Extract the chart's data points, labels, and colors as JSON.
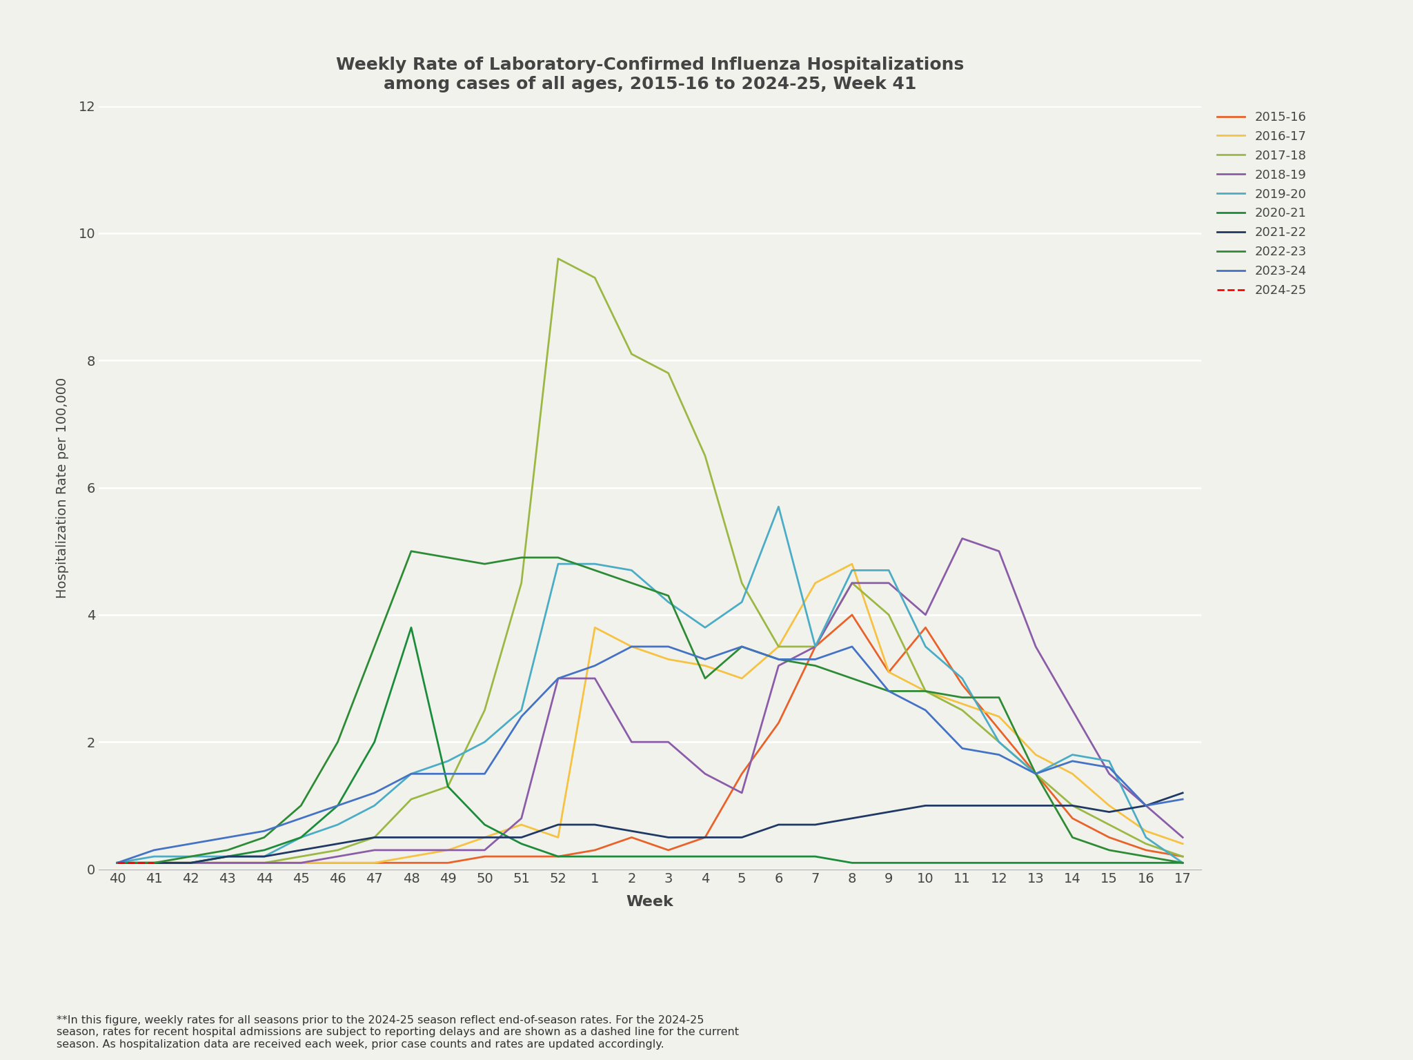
{
  "title_line1": "Weekly Rate of Laboratory-Confirmed Influenza Hospitalizations",
  "title_line2": "among cases of all ages, 2015-16 to 2024-25, Week 41",
  "ylabel": "Hospitalization Rate per 100,000",
  "xlabel": "Week",
  "footnote": "**In this figure, weekly rates for all seasons prior to the 2024-25 season reflect end-of-season rates. For the 2024-25\nseason, rates for recent hospital admissions are subject to reporting delays and are shown as a dashed line for the current\nseason. As hospitalization data are received each week, prior case counts and rates are updated accordingly.",
  "background_color": "#f2f2ec",
  "ylim": [
    0,
    12
  ],
  "yticks": [
    0,
    2,
    4,
    6,
    8,
    10,
    12
  ],
  "weeks": [
    "40",
    "41",
    "42",
    "43",
    "44",
    "45",
    "46",
    "47",
    "48",
    "49",
    "50",
    "51",
    "52",
    "1",
    "2",
    "3",
    "4",
    "5",
    "6",
    "7",
    "8",
    "9",
    "10",
    "11",
    "12",
    "13",
    "14",
    "15",
    "16",
    "17"
  ],
  "seasons": {
    "2015-16": {
      "color": "#E8622A",
      "dashed": false,
      "data": [
        0.1,
        0.1,
        0.1,
        0.1,
        0.1,
        0.1,
        0.1,
        0.1,
        0.1,
        0.1,
        0.2,
        0.2,
        0.2,
        0.3,
        0.5,
        0.3,
        0.5,
        1.5,
        2.3,
        3.5,
        4.0,
        3.1,
        3.8,
        2.9,
        2.2,
        1.5,
        0.8,
        0.5,
        0.3,
        0.2
      ]
    },
    "2016-17": {
      "color": "#F5C242",
      "dashed": false,
      "data": [
        0.1,
        0.1,
        0.1,
        0.1,
        0.1,
        0.1,
        0.1,
        0.1,
        0.2,
        0.3,
        0.5,
        0.7,
        0.5,
        3.8,
        3.5,
        3.3,
        3.2,
        3.0,
        3.5,
        4.5,
        4.8,
        3.1,
        2.8,
        2.6,
        2.4,
        1.8,
        1.5,
        1.0,
        0.6,
        0.4
      ]
    },
    "2017-18": {
      "color": "#9CB844",
      "dashed": false,
      "data": [
        0.1,
        0.1,
        0.1,
        0.1,
        0.1,
        0.2,
        0.3,
        0.5,
        1.1,
        1.3,
        2.5,
        4.5,
        9.6,
        9.3,
        8.1,
        7.8,
        6.5,
        4.5,
        3.5,
        3.5,
        4.5,
        4.0,
        2.8,
        2.5,
        2.0,
        1.5,
        1.0,
        0.7,
        0.4,
        0.2
      ]
    },
    "2018-19": {
      "color": "#8B5CA8",
      "dashed": false,
      "data": [
        0.1,
        0.1,
        0.1,
        0.1,
        0.1,
        0.1,
        0.2,
        0.3,
        0.3,
        0.3,
        0.3,
        0.8,
        3.0,
        3.0,
        2.0,
        2.0,
        1.5,
        1.2,
        3.2,
        3.5,
        4.5,
        4.5,
        4.0,
        5.2,
        5.0,
        3.5,
        2.5,
        1.5,
        1.0,
        0.5
      ]
    },
    "2019-20": {
      "color": "#4BACC6",
      "dashed": false,
      "data": [
        0.1,
        0.2,
        0.2,
        0.2,
        0.2,
        0.5,
        0.7,
        1.0,
        1.5,
        1.7,
        2.0,
        2.5,
        4.8,
        4.8,
        4.7,
        4.2,
        3.8,
        4.2,
        5.7,
        3.5,
        4.7,
        4.7,
        3.5,
        3.0,
        2.0,
        1.5,
        1.8,
        1.7,
        0.5,
        0.1
      ]
    },
    "2020-21": {
      "color": "#1A8C3A",
      "dashed": false,
      "data": [
        0.1,
        0.1,
        0.1,
        0.2,
        0.3,
        0.5,
        1.0,
        2.0,
        3.8,
        1.3,
        0.7,
        0.4,
        0.2,
        0.2,
        0.2,
        0.2,
        0.2,
        0.2,
        0.2,
        0.2,
        0.1,
        0.1,
        0.1,
        0.1,
        0.1,
        0.1,
        0.1,
        0.1,
        0.1,
        0.1
      ]
    },
    "2021-22": {
      "color": "#1F3864",
      "dashed": false,
      "data": [
        0.1,
        0.1,
        0.1,
        0.2,
        0.2,
        0.3,
        0.4,
        0.5,
        0.5,
        0.5,
        0.5,
        0.5,
        0.7,
        0.7,
        0.6,
        0.5,
        0.5,
        0.5,
        0.7,
        0.7,
        0.8,
        0.9,
        1.0,
        1.0,
        1.0,
        1.0,
        1.0,
        0.9,
        1.0,
        1.2
      ]
    },
    "2022-23": {
      "color": "#2E8B35",
      "dashed": false,
      "data": [
        0.1,
        0.1,
        0.2,
        0.3,
        0.5,
        1.0,
        2.0,
        3.5,
        5.0,
        4.9,
        4.8,
        4.9,
        4.9,
        4.7,
        4.5,
        4.3,
        3.0,
        3.5,
        3.3,
        3.2,
        3.0,
        2.8,
        2.8,
        2.7,
        2.7,
        1.5,
        0.5,
        0.3,
        0.2,
        0.1
      ]
    },
    "2023-24": {
      "color": "#4472C4",
      "dashed": false,
      "data": [
        0.1,
        0.3,
        0.4,
        0.5,
        0.6,
        0.8,
        1.0,
        1.2,
        1.5,
        1.5,
        1.5,
        2.4,
        3.0,
        3.2,
        3.5,
        3.5,
        3.3,
        3.5,
        3.3,
        3.3,
        3.5,
        2.8,
        2.5,
        1.9,
        1.8,
        1.5,
        1.7,
        1.6,
        1.0,
        1.1
      ]
    },
    "2024-25": {
      "color": "#FF0000",
      "dashed": true,
      "data": [
        0.1,
        0.1,
        null,
        null,
        null,
        null,
        null,
        null,
        null,
        null,
        null,
        null,
        null,
        null,
        null,
        null,
        null,
        null,
        null,
        null,
        null,
        null,
        null,
        null,
        null,
        null,
        null,
        null,
        null,
        null
      ]
    }
  },
  "season_order": [
    "2015-16",
    "2016-17",
    "2017-18",
    "2018-19",
    "2019-20",
    "2020-21",
    "2021-22",
    "2022-23",
    "2023-24",
    "2024-25"
  ]
}
